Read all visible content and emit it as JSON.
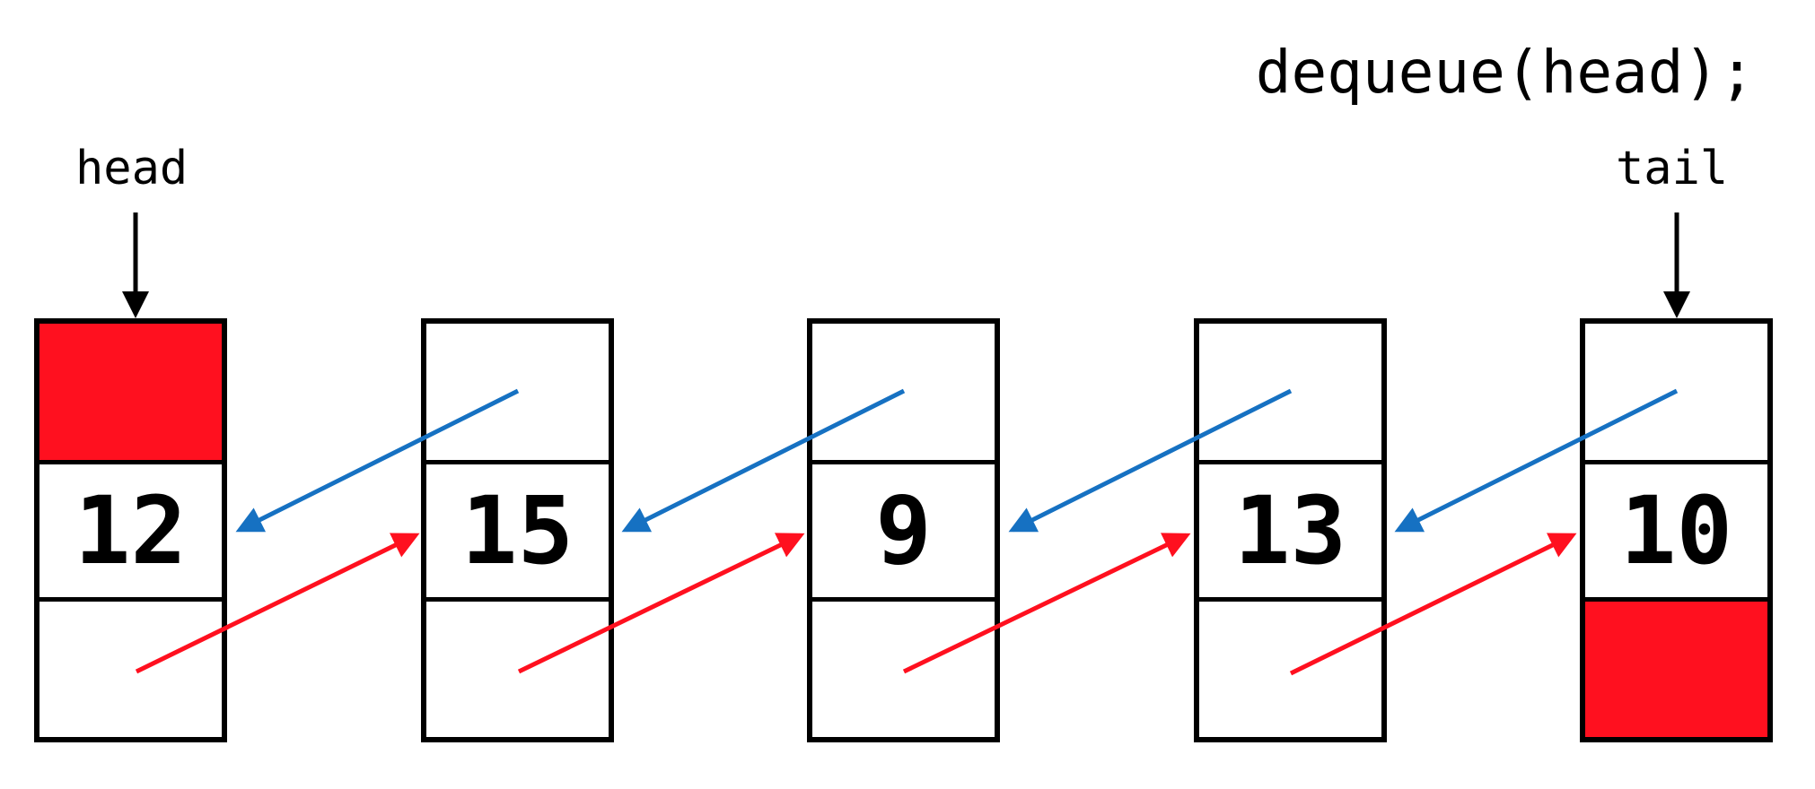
{
  "operation": "dequeue(head);",
  "pointers": {
    "head": "head",
    "tail": "tail"
  },
  "nodes": [
    {
      "value": "12",
      "prev_null": true,
      "next_null": false
    },
    {
      "value": "15",
      "prev_null": false,
      "next_null": false
    },
    {
      "value": "9",
      "prev_null": false,
      "next_null": false
    },
    {
      "value": "13",
      "prev_null": false,
      "next_null": false
    },
    {
      "value": "10",
      "prev_null": false,
      "next_null": true
    }
  ],
  "colors": {
    "null_fill": "#ff101f",
    "prev_link": "#1671c2",
    "next_link": "#ff101f",
    "border": "#000000"
  }
}
